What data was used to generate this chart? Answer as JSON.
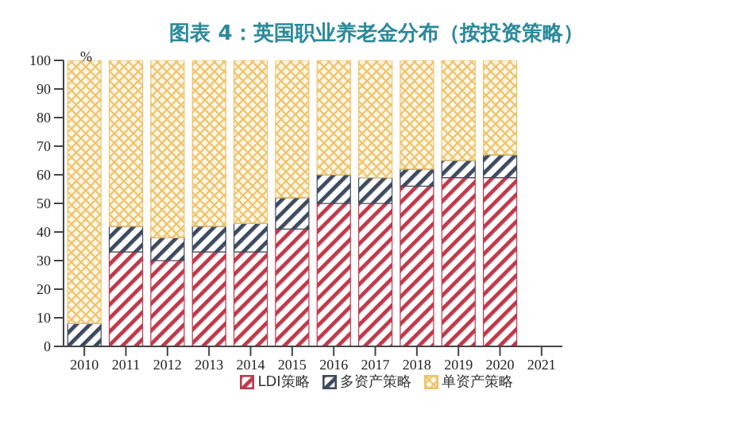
{
  "chart_data": {
    "type": "bar",
    "title": "图表 4：英国职业养老金分布（按投资策略）",
    "ylabel": "%",
    "stacked": true,
    "categories": [
      "2010",
      "2011",
      "2012",
      "2013",
      "2014",
      "2015",
      "2016",
      "2017",
      "2018",
      "2019",
      "2020",
      "2021"
    ],
    "series": [
      {
        "name": "LDI策略",
        "color": "#c0394b",
        "values": [
          0,
          33,
          30,
          33,
          33,
          41,
          50,
          50,
          56,
          59,
          59,
          null
        ]
      },
      {
        "name": "多资产策略",
        "color": "#3d4a5f",
        "values": [
          8,
          9,
          8,
          9,
          10,
          11,
          10,
          9,
          6,
          6,
          8,
          null
        ]
      },
      {
        "name": "单资产策略",
        "color": "#eec36a",
        "values": [
          92,
          58,
          62,
          58,
          57,
          48,
          40,
          41,
          38,
          35,
          33,
          null
        ]
      }
    ],
    "ylim": [
      0,
      100
    ],
    "yticks": [
      0,
      10,
      20,
      30,
      40,
      50,
      60,
      70,
      80,
      90,
      100
    ],
    "grid": false,
    "legend": "bottom"
  }
}
